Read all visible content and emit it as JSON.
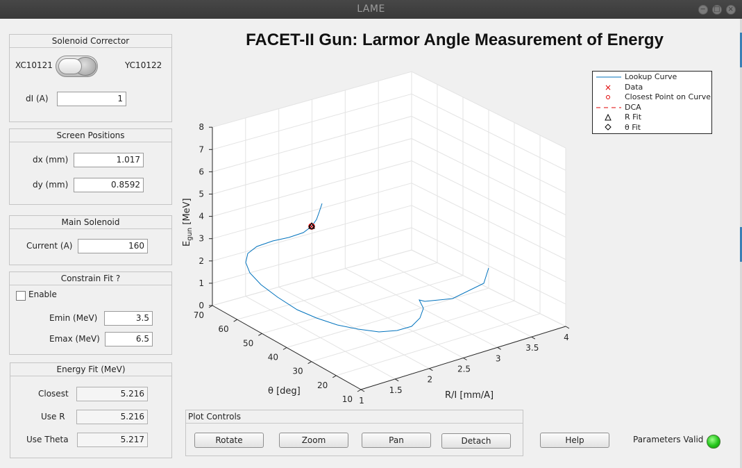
{
  "window": {
    "title": "LAME"
  },
  "solenoid_corrector": {
    "title": "Solenoid Corrector",
    "left_label": "XC10121",
    "right_label": "YC10122",
    "di_label": "dI (A)",
    "di_value": "1"
  },
  "screen_positions": {
    "title": "Screen Positions",
    "dx_label": "dx (mm)",
    "dx_value": "1.017",
    "dy_label": "dy (mm)",
    "dy_value": "0.8592"
  },
  "main_solenoid": {
    "title": "Main Solenoid",
    "current_label": "Current (A)",
    "current_value": "160"
  },
  "constrain_fit": {
    "title": "Constrain Fit ?",
    "enable_label": "Enable",
    "enable_checked": false,
    "emin_label": "Emin (MeV)",
    "emin_value": "3.5",
    "emax_label": "Emax (MeV)",
    "emax_value": "6.5"
  },
  "energy_fit": {
    "title": "Energy Fit (MeV)",
    "closest_label": "Closest",
    "closest_value": "5.216",
    "user_label": "Use R",
    "user_value": "5.216",
    "usetheta_label": "Use Theta",
    "usetheta_value": "5.217"
  },
  "plot": {
    "title": "FACET-II Gun: Larmor Angle Measurement of Energy",
    "zlabel_main": "E",
    "zlabel_sub": "gun",
    "zlabel_unit": " [MeV]",
    "xlabel": "R/I [mm/A]",
    "ylabel": "θ [deg]",
    "legend": [
      "Lookup Curve",
      "Data",
      "Closest Point on Curve",
      "DCA",
      "R Fit",
      "θ Fit"
    ]
  },
  "chart_data": {
    "type": "line3d",
    "title": "FACET-II Gun: Larmor Angle Measurement of Energy",
    "xlabel": "R/I [mm/A]",
    "ylabel": "θ [deg]",
    "zlabel": "Egun [MeV]",
    "xlim": [
      1,
      4
    ],
    "ylim": [
      10,
      70
    ],
    "zlim": [
      0,
      8
    ],
    "x_ticks": [
      "1",
      "1.5",
      "2",
      "2.5",
      "3",
      "3.5",
      "4"
    ],
    "y_ticks": [
      "10",
      "20",
      "30",
      "40",
      "50",
      "60",
      "70"
    ],
    "z_ticks": [
      "0",
      "1",
      "2",
      "3",
      "4",
      "5",
      "6",
      "7",
      "8"
    ],
    "grid": true,
    "legend_position": "top-right",
    "series": [
      {
        "name": "Lookup Curve",
        "color": "#0072bd"
      },
      {
        "name": "Data",
        "color": "#e00000",
        "marker": "x",
        "point": {
          "z": 5.2
        }
      },
      {
        "name": "Closest Point on Curve",
        "color": "#e00000",
        "marker": "o",
        "point": {
          "z": 5.2
        }
      },
      {
        "name": "DCA",
        "color": "#e00000",
        "line": "dashed"
      },
      {
        "name": "R Fit",
        "color": "#000000",
        "marker": "triangle",
        "point": {
          "z": 5.2
        }
      },
      {
        "name": "θ Fit",
        "color": "#000000",
        "marker": "diamond",
        "point": {
          "z": 5.2
        }
      }
    ]
  },
  "plot_controls": {
    "title": "Plot Controls",
    "rotate": "Rotate",
    "zoom": "Zoom",
    "pan": "Pan",
    "detach": "Detach"
  },
  "help_label": "Help",
  "status": {
    "label": "Parameters Valid",
    "led_color": "#22c51a"
  }
}
